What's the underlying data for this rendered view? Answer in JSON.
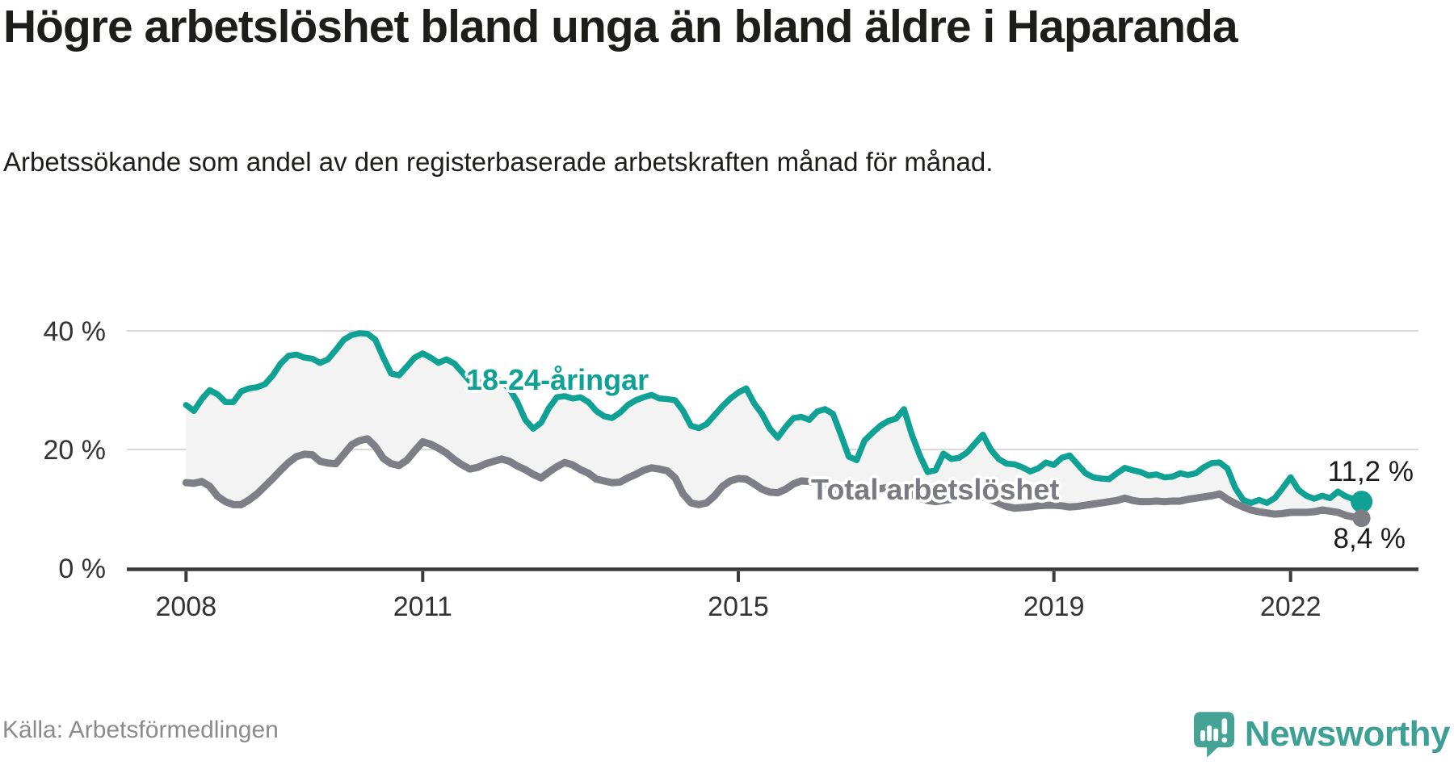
{
  "header": {
    "title": "Högre arbetslöshet bland unga än bland äldre i Haparanda",
    "subtitle": "Arbetssökande som andel av den registerbaserade arbetskraften månad för månad."
  },
  "footer": {
    "source": "Källa: Arbetsförmedlingen",
    "brand": "Newsworthy"
  },
  "colors": {
    "young_line": "#0fa193",
    "total_line": "#7e7e86",
    "band_fill": "#f3f3f3",
    "axis": "#3a3a3a",
    "grid": "#d9d9d9",
    "tick_text": "#333333",
    "value_text": "#1b1b1b",
    "source_text": "#8b8b8b",
    "logo_teal": "#3da095"
  },
  "chart_data": {
    "type": "line",
    "title": "Högre arbetslöshet bland unga än bland äldre i Haparanda",
    "subtitle": "Arbetssökande som andel av den registerbaserade arbetskraften månad för månad.",
    "xlabel": "",
    "ylabel": "",
    "grid": "horizontal",
    "legend_position": "inline-labels",
    "x_range": [
      2008.0,
      2022.9
    ],
    "ylim": [
      0,
      44
    ],
    "x_ticks": [
      {
        "value": 2008,
        "label": "2008"
      },
      {
        "value": 2011,
        "label": "2011"
      },
      {
        "value": 2015,
        "label": "2015"
      },
      {
        "value": 2019,
        "label": "2019"
      },
      {
        "value": 2022,
        "label": "2022"
      }
    ],
    "y_ticks": [
      {
        "value": 0,
        "label": "0 %"
      },
      {
        "value": 20,
        "label": "20 %"
      },
      {
        "value": 40,
        "label": "40 %"
      }
    ],
    "x": [
      2008.0,
      2008.1,
      2008.2,
      2008.3,
      2008.4,
      2008.5,
      2008.6,
      2008.7,
      2008.8,
      2008.9,
      2009.0,
      2009.1,
      2009.2,
      2009.3,
      2009.4,
      2009.5,
      2009.6,
      2009.7,
      2009.8,
      2009.9,
      2010.0,
      2010.1,
      2010.2,
      2010.3,
      2010.4,
      2010.5,
      2010.6,
      2010.7,
      2010.8,
      2010.9,
      2011.0,
      2011.1,
      2011.2,
      2011.3,
      2011.4,
      2011.5,
      2011.6,
      2011.7,
      2011.8,
      2011.9,
      2012.0,
      2012.1,
      2012.2,
      2012.3,
      2012.4,
      2012.5,
      2012.6,
      2012.7,
      2012.8,
      2012.9,
      2013.0,
      2013.1,
      2013.2,
      2013.3,
      2013.4,
      2013.5,
      2013.6,
      2013.7,
      2013.8,
      2013.9,
      2014.0,
      2014.1,
      2014.2,
      2014.3,
      2014.4,
      2014.5,
      2014.6,
      2014.7,
      2014.8,
      2014.9,
      2015.0,
      2015.1,
      2015.2,
      2015.3,
      2015.4,
      2015.5,
      2015.6,
      2015.7,
      2015.8,
      2015.9,
      2016.0,
      2016.1,
      2016.2,
      2016.3,
      2016.4,
      2016.5,
      2016.6,
      2016.7,
      2016.8,
      2016.9,
      2017.0,
      2017.1,
      2017.2,
      2017.3,
      2017.4,
      2017.5,
      2017.6,
      2017.7,
      2017.8,
      2017.9,
      2018.0,
      2018.1,
      2018.2,
      2018.3,
      2018.4,
      2018.5,
      2018.6,
      2018.7,
      2018.8,
      2018.9,
      2019.0,
      2019.1,
      2019.2,
      2019.3,
      2019.4,
      2019.5,
      2019.6,
      2019.7,
      2019.8,
      2019.9,
      2020.0,
      2020.1,
      2020.2,
      2020.3,
      2020.4,
      2020.5,
      2020.6,
      2020.7,
      2020.8,
      2020.9,
      2021.0,
      2021.1,
      2021.2,
      2021.3,
      2021.4,
      2021.5,
      2021.6,
      2021.7,
      2021.8,
      2021.9,
      2022.0,
      2022.1,
      2022.2,
      2022.3,
      2022.4,
      2022.5,
      2022.6,
      2022.7,
      2022.8,
      2022.9
    ],
    "series": [
      {
        "name": "18-24-åringar",
        "color": "#0fa193",
        "end_label": "11,2 %",
        "end_value": 11.2,
        "values": [
          27.5,
          26.5,
          28.5,
          30.0,
          29.3,
          28.0,
          28.0,
          29.8,
          30.3,
          30.5,
          31.0,
          32.5,
          34.5,
          35.8,
          36.0,
          35.5,
          35.3,
          34.6,
          35.2,
          36.8,
          38.5,
          39.3,
          39.6,
          39.5,
          38.5,
          35.5,
          32.8,
          32.5,
          34.0,
          35.5,
          36.2,
          35.5,
          34.6,
          35.2,
          34.5,
          33.0,
          31.5,
          30.8,
          31.8,
          32.2,
          31.5,
          30.2,
          28.0,
          25.0,
          23.5,
          24.5,
          27.0,
          28.8,
          29.0,
          28.6,
          28.8,
          28.0,
          26.5,
          25.6,
          25.3,
          26.2,
          27.5,
          28.3,
          28.8,
          29.2,
          28.6,
          28.5,
          28.3,
          26.5,
          24.0,
          23.6,
          24.3,
          25.8,
          27.3,
          28.6,
          29.6,
          30.3,
          27.8,
          26.0,
          23.5,
          22.0,
          23.8,
          25.3,
          25.5,
          25.0,
          26.4,
          26.8,
          26.0,
          22.5,
          18.8,
          18.2,
          21.5,
          22.8,
          24.0,
          24.8,
          25.2,
          26.8,
          22.5,
          19.0,
          16.2,
          16.5,
          19.3,
          18.4,
          18.6,
          19.5,
          21.0,
          22.5,
          20.0,
          18.4,
          17.6,
          17.5,
          17.0,
          16.3,
          16.8,
          17.8,
          17.4,
          18.6,
          19.0,
          17.5,
          16.0,
          15.3,
          15.1,
          15.0,
          16.0,
          16.9,
          16.5,
          16.2,
          15.6,
          15.8,
          15.3,
          15.4,
          16.0,
          15.7,
          16.0,
          17.0,
          17.7,
          17.8,
          16.8,
          13.5,
          11.5,
          11.0,
          11.5,
          11.0,
          11.8,
          13.5,
          15.3,
          13.2,
          12.2,
          11.7,
          12.2,
          11.8,
          12.9,
          12.1,
          11.6,
          11.2
        ]
      },
      {
        "name": "Total arbetslöshet",
        "color": "#7e7e86",
        "end_label": "8,4 %",
        "end_value": 8.4,
        "values": [
          14.4,
          14.3,
          14.6,
          13.8,
          12.1,
          11.2,
          10.7,
          10.7,
          11.5,
          12.5,
          13.8,
          15.1,
          16.5,
          17.8,
          18.8,
          19.2,
          19.1,
          18.0,
          17.7,
          17.6,
          19.2,
          20.8,
          21.5,
          21.8,
          20.5,
          18.5,
          17.6,
          17.3,
          18.2,
          19.8,
          21.3,
          20.9,
          20.2,
          19.4,
          18.3,
          17.4,
          16.7,
          17.0,
          17.6,
          18.0,
          18.4,
          18.0,
          17.2,
          16.6,
          15.8,
          15.2,
          16.2,
          17.1,
          17.8,
          17.4,
          16.6,
          16.0,
          15.0,
          14.7,
          14.4,
          14.5,
          15.2,
          15.8,
          16.5,
          16.9,
          16.7,
          16.4,
          15.2,
          12.5,
          11.0,
          10.7,
          11.0,
          12.2,
          13.8,
          14.7,
          15.1,
          15.0,
          14.2,
          13.3,
          12.8,
          12.7,
          13.3,
          14.2,
          14.7,
          14.6,
          14.4,
          14.0,
          13.4,
          12.8,
          12.4,
          12.2,
          12.6,
          13.0,
          13.4,
          13.6,
          13.4,
          13.0,
          12.4,
          11.8,
          11.4,
          11.2,
          11.4,
          11.6,
          11.9,
          12.1,
          12.2,
          12.0,
          11.5,
          11.0,
          10.4,
          10.1,
          10.2,
          10.3,
          10.5,
          10.6,
          10.6,
          10.5,
          10.3,
          10.4,
          10.6,
          10.8,
          11.0,
          11.2,
          11.4,
          11.8,
          11.4,
          11.2,
          11.2,
          11.3,
          11.2,
          11.3,
          11.3,
          11.6,
          11.8,
          12.0,
          12.2,
          12.5,
          11.6,
          10.9,
          10.3,
          9.8,
          9.5,
          9.3,
          9.1,
          9.2,
          9.4,
          9.4,
          9.4,
          9.5,
          9.8,
          9.6,
          9.4,
          8.9,
          8.6,
          8.4
        ]
      }
    ]
  }
}
